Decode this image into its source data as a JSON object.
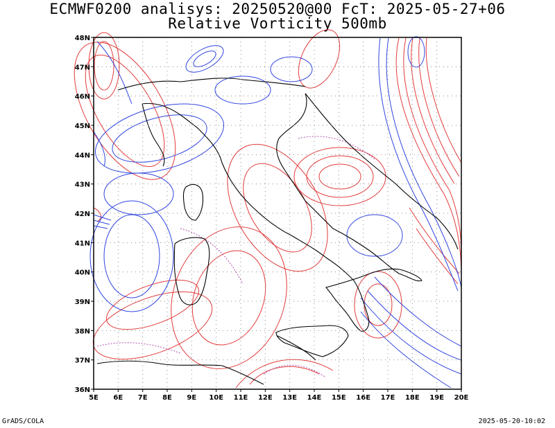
{
  "title_line1": "ECMWF0200 analisys: 20250520@00 FcT: 2025-05-27+06",
  "title_line2": "Relative Vorticity 500mb",
  "footer_left": "GrADS/COLA",
  "footer_right": "2025-05-20-10:02",
  "map": {
    "lon_range": [
      5,
      20
    ],
    "lat_range": [
      36,
      48
    ],
    "lon_ticks": [
      "5E",
      "6E",
      "7E",
      "8E",
      "9E",
      "10E",
      "11E",
      "12E",
      "13E",
      "14E",
      "15E",
      "16E",
      "17E",
      "18E",
      "19E",
      "20E"
    ],
    "lat_ticks": [
      "36N",
      "37N",
      "38N",
      "39N",
      "40N",
      "41N",
      "42N",
      "43N",
      "44N",
      "45N",
      "46N",
      "47N",
      "48N"
    ],
    "grid": "dotted",
    "colors": {
      "positive_contours": "#e23a3a",
      "negative_contours": "#2f45e0",
      "zero_contour": "#b050b0",
      "coastline": "#000000",
      "grid": "#888888"
    }
  }
}
